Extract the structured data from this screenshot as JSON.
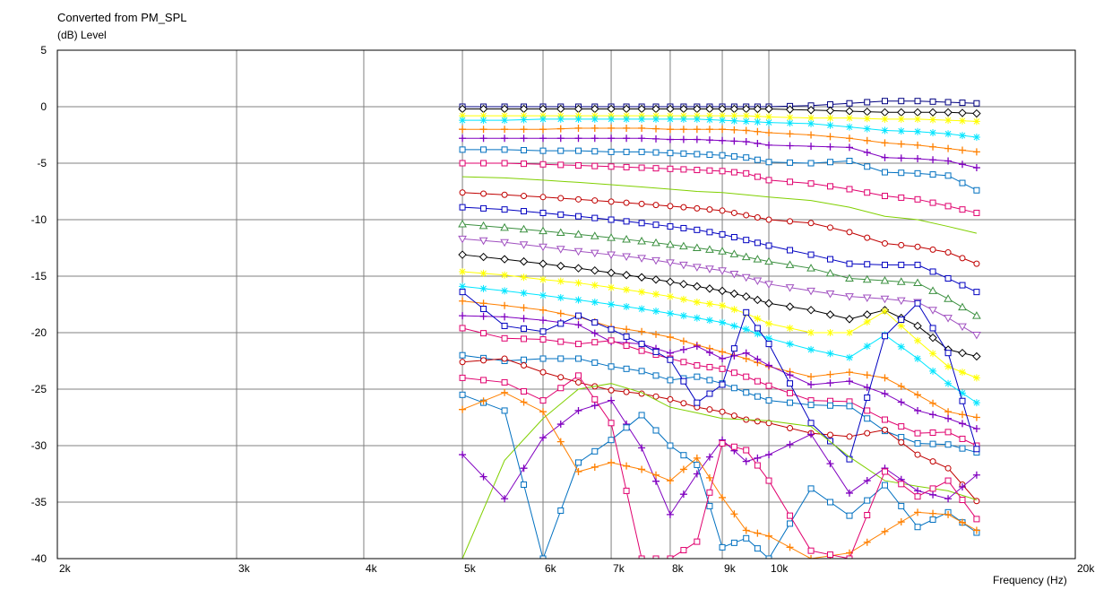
{
  "chart_data": {
    "type": "line",
    "title": "Converted from PM_SPL",
    "ylabel": "(dB)  Level",
    "xlabel": "Frequency  (Hz)",
    "x_scale": "log",
    "xlim": [
      2000,
      20000
    ],
    "ylim": [
      -40,
      5
    ],
    "grid": true,
    "x_ticks": [
      {
        "v": 2000,
        "label": "2k"
      },
      {
        "v": 3000,
        "label": "3k"
      },
      {
        "v": 4000,
        "label": "4k"
      },
      {
        "v": 5000,
        "label": "5k"
      },
      {
        "v": 6000,
        "label": "6k"
      },
      {
        "v": 7000,
        "label": "7k"
      },
      {
        "v": 8000,
        "label": "8k"
      },
      {
        "v": 9000,
        "label": "9k"
      },
      {
        "v": 10000,
        "label": "10k"
      },
      {
        "v": 20000,
        "label": "20k"
      }
    ],
    "y_ticks": [
      5,
      0,
      -5,
      -10,
      -15,
      -20,
      -25,
      -30,
      -35,
      -40
    ],
    "x": [
      5000,
      5500,
      6000,
      6500,
      7000,
      7500,
      8000,
      8500,
      9000,
      9500,
      10000,
      11000,
      12000,
      13000,
      14000,
      15000,
      16000
    ],
    "series": [
      {
        "color": "#000080",
        "marker": "square",
        "values": [
          0.0,
          0.0,
          0.0,
          0.0,
          0.0,
          0.0,
          0.0,
          0.0,
          0.0,
          0.0,
          0.0,
          0.1,
          0.3,
          0.5,
          0.5,
          0.4,
          0.3
        ]
      },
      {
        "color": "#000000",
        "marker": "diamond",
        "values": [
          -0.2,
          -0.2,
          -0.2,
          -0.2,
          -0.2,
          -0.2,
          -0.2,
          -0.2,
          -0.2,
          -0.2,
          -0.2,
          -0.3,
          -0.4,
          -0.5,
          -0.5,
          -0.5,
          -0.6
        ]
      },
      {
        "color": "#ffff00",
        "marker": "star",
        "values": [
          -0.8,
          -0.8,
          -0.8,
          -0.8,
          -0.8,
          -0.8,
          -0.8,
          -0.8,
          -0.8,
          -0.8,
          -0.9,
          -1.0,
          -1.0,
          -1.1,
          -1.1,
          -1.2,
          -1.3
        ]
      },
      {
        "color": "#00e5ff",
        "marker": "star",
        "values": [
          -1.2,
          -1.2,
          -1.1,
          -1.1,
          -1.1,
          -1.1,
          -1.1,
          -1.1,
          -1.2,
          -1.3,
          -1.4,
          -1.5,
          -1.8,
          -2.1,
          -2.2,
          -2.4,
          -2.7
        ]
      },
      {
        "color": "#ff8000",
        "marker": "plus",
        "values": [
          -2.0,
          -2.0,
          -2.0,
          -1.9,
          -1.9,
          -1.9,
          -2.0,
          -2.0,
          -2.0,
          -2.1,
          -2.3,
          -2.5,
          -2.8,
          -3.2,
          -3.4,
          -3.7,
          -4.0
        ]
      },
      {
        "color": "#8000c0",
        "marker": "plus",
        "values": [
          -2.8,
          -2.8,
          -2.8,
          -2.8,
          -2.8,
          -2.8,
          -2.9,
          -2.9,
          -3.0,
          -3.1,
          -3.4,
          -3.5,
          -3.6,
          -4.5,
          -4.6,
          -4.8,
          -5.4
        ]
      },
      {
        "color": "#0070c0",
        "marker": "square",
        "values": [
          -3.8,
          -3.8,
          -3.9,
          -3.9,
          -4.0,
          -4.0,
          -4.1,
          -4.2,
          -4.3,
          -4.5,
          -4.9,
          -5.0,
          -4.8,
          -5.8,
          -5.9,
          -6.1,
          -7.4
        ]
      },
      {
        "color": "#e0006e",
        "marker": "square",
        "values": [
          -5.0,
          -5.0,
          -5.1,
          -5.2,
          -5.3,
          -5.4,
          -5.5,
          -5.6,
          -5.7,
          -5.9,
          -6.5,
          -6.8,
          -7.3,
          -7.9,
          -8.2,
          -8.8,
          -9.4
        ]
      },
      {
        "color": "#80d000",
        "marker": "none",
        "values": [
          -6.2,
          -6.3,
          -6.5,
          -6.7,
          -6.9,
          -7.1,
          -7.3,
          -7.5,
          -7.6,
          -7.8,
          -8.0,
          -8.3,
          -8.9,
          -9.7,
          -10.0,
          -10.6,
          -11.2
        ]
      },
      {
        "color": "#c00000",
        "marker": "circle",
        "values": [
          -7.6,
          -7.8,
          -8.0,
          -8.2,
          -8.4,
          -8.6,
          -8.8,
          -9.0,
          -9.2,
          -9.6,
          -10.0,
          -10.3,
          -11.1,
          -12.1,
          -12.4,
          -12.9,
          -13.9
        ]
      },
      {
        "color": "#0000c0",
        "marker": "square",
        "values": [
          -8.9,
          -9.1,
          -9.4,
          -9.7,
          -10.0,
          -10.3,
          -10.6,
          -10.9,
          -11.3,
          -11.8,
          -12.3,
          -13.1,
          -13.9,
          -14.0,
          -14.0,
          -15.2,
          -16.4
        ]
      },
      {
        "color": "#3c9040",
        "marker": "triangle",
        "values": [
          -10.4,
          -10.7,
          -11.0,
          -11.3,
          -11.6,
          -11.9,
          -12.2,
          -12.5,
          -12.8,
          -13.3,
          -13.7,
          -14.3,
          -15.2,
          -15.4,
          -15.6,
          -17.0,
          -18.5
        ]
      },
      {
        "color": "#a050c0",
        "marker": "triangle-down",
        "values": [
          -11.7,
          -12.0,
          -12.4,
          -12.8,
          -13.1,
          -13.4,
          -13.8,
          -14.2,
          -14.5,
          -15.1,
          -15.7,
          -16.3,
          -16.8,
          -17.0,
          -17.3,
          -18.7,
          -20.2
        ]
      },
      {
        "color": "#000000",
        "marker": "diamond",
        "values": [
          -13.1,
          -13.5,
          -13.9,
          -14.3,
          -14.7,
          -15.1,
          -15.5,
          -15.9,
          -16.3,
          -16.8,
          -17.4,
          -18.0,
          -18.8,
          -18.0,
          -19.4,
          -21.5,
          -22.1
        ]
      },
      {
        "color": "#ffff00",
        "marker": "star",
        "values": [
          -14.6,
          -14.9,
          -15.3,
          -15.6,
          -16.0,
          -16.4,
          -16.8,
          -17.3,
          -17.6,
          -18.3,
          -19.2,
          -20.0,
          -20.0,
          -18.1,
          -20.7,
          -23.0,
          -24.0
        ]
      },
      {
        "color": "#00e5ff",
        "marker": "star",
        "values": [
          -15.9,
          -16.3,
          -16.7,
          -17.1,
          -17.5,
          -17.9,
          -18.3,
          -18.7,
          -19.1,
          -19.7,
          -20.5,
          -21.5,
          -22.2,
          -20.2,
          -22.3,
          -24.5,
          -26.2
        ]
      },
      {
        "color": "#ff8000",
        "marker": "plus",
        "values": [
          -17.2,
          -17.6,
          -18.0,
          -18.6,
          -19.5,
          -19.9,
          -20.4,
          -21.1,
          -21.7,
          -22.3,
          -23.0,
          -23.9,
          -23.5,
          -24.0,
          -25.5,
          -27.0,
          -27.5
        ]
      },
      {
        "color": "#8000c0",
        "marker": "plus",
        "values": [
          -18.5,
          -18.6,
          -18.9,
          -19.3,
          -20.8,
          -21.0,
          -21.8,
          -21.2,
          -22.3,
          -21.8,
          -22.9,
          -24.6,
          -24.3,
          -25.4,
          -26.9,
          -27.6,
          -28.5
        ]
      },
      {
        "color": "#e0006e",
        "marker": "square",
        "values": [
          -19.6,
          -20.5,
          -20.6,
          -21.0,
          -20.7,
          -21.6,
          -22.3,
          -22.9,
          -23.2,
          -23.9,
          -24.7,
          -26.0,
          -26.1,
          -27.7,
          -28.9,
          -28.8,
          -30.0
        ]
      },
      {
        "color": "#0070c0",
        "marker": "square",
        "values": [
          -22.0,
          -22.5,
          -22.3,
          -22.3,
          -23.0,
          -23.4,
          -24.2,
          -23.9,
          -24.5,
          -25.3,
          -26.0,
          -26.4,
          -26.5,
          -28.7,
          -29.8,
          -29.9,
          -30.6
        ]
      },
      {
        "color": "#c00000",
        "marker": "circle",
        "values": [
          -22.6,
          -22.3,
          -23.5,
          -24.4,
          -25.1,
          -25.4,
          -25.9,
          -26.6,
          -27.0,
          -27.7,
          -28.0,
          -28.9,
          -29.2,
          -28.6,
          -30.8,
          -32.0,
          -34.9
        ]
      },
      {
        "color": "#0000c0",
        "marker": "square",
        "values": [
          -16.4,
          -19.4,
          -19.9,
          -18.5,
          -19.7,
          -21.0,
          -22.4,
          -26.2,
          -24.6,
          -18.2,
          -21.0,
          -28.0,
          -31.2,
          -20.3,
          -17.4,
          -21.8,
          -30.3
        ]
      },
      {
        "color": "#80d000",
        "marker": "none",
        "values": [
          -40.0,
          -31.3,
          -27.6,
          -25.0,
          -24.5,
          -25.3,
          -26.6,
          -27.1,
          -27.6,
          -27.7,
          -27.8,
          -28.3,
          -31.0,
          -33.1,
          -33.6,
          -34.0,
          -34.8
        ]
      },
      {
        "color": "#8000c0",
        "marker": "plus",
        "values": [
          -30.8,
          -34.7,
          -29.3,
          -26.9,
          -26.0,
          -30.2,
          -36.1,
          -32.5,
          -29.5,
          -31.4,
          -30.8,
          -29.0,
          -34.2,
          -32.0,
          -34.0,
          -34.7,
          -32.6
        ]
      },
      {
        "color": "#0070c0",
        "marker": "square",
        "values": [
          -25.5,
          -26.9,
          -40.0,
          -31.5,
          -29.5,
          -27.3,
          -30.0,
          -31.7,
          -39.0,
          -38.2,
          -40.0,
          -33.8,
          -36.2,
          -33.5,
          -37.2,
          -35.9,
          -37.7
        ]
      },
      {
        "color": "#ff8000",
        "marker": "plus",
        "values": [
          -26.8,
          -25.3,
          -27.0,
          -32.3,
          -31.5,
          -32.1,
          -33.1,
          -31.1,
          -34.6,
          -37.5,
          -38.0,
          -40.0,
          -39.5,
          -37.6,
          -35.9,
          -36.1,
          -37.5
        ]
      },
      {
        "color": "#e0006e",
        "marker": "square",
        "values": [
          -24.0,
          -24.4,
          -26.0,
          -23.8,
          -28.0,
          -40.0,
          -40.0,
          -38.5,
          -29.8,
          -30.4,
          -33.1,
          -39.3,
          -40.0,
          -32.3,
          -34.5,
          -33.1,
          -36.5
        ]
      }
    ]
  }
}
